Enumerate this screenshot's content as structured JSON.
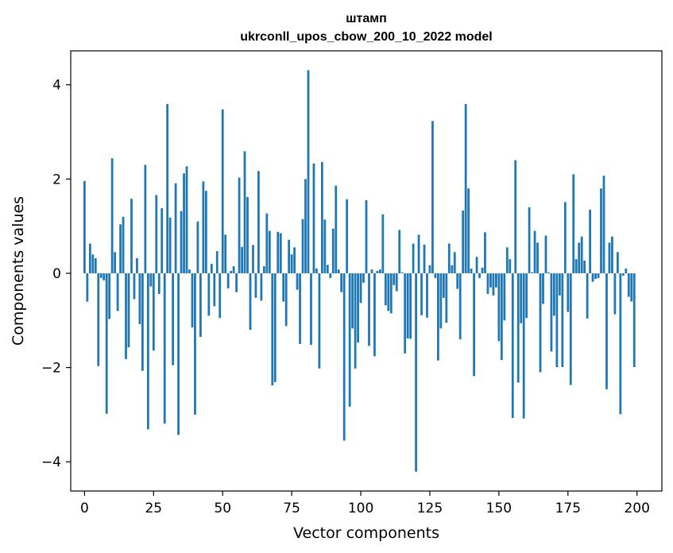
{
  "chart_data": {
    "type": "bar",
    "title": "штамп",
    "subtitle": "ukrconll_upos_cbow_200_10_2022 model",
    "xlabel": "Vector components",
    "ylabel": "Components values",
    "xlim": [
      -5,
      209
    ],
    "ylim": [
      -4.62,
      4.72
    ],
    "xticks": [
      0,
      25,
      50,
      75,
      100,
      125,
      150,
      175,
      200
    ],
    "yticks": [
      -4,
      -2,
      0,
      2,
      4
    ],
    "ytick_labels": [
      "−4",
      "−2",
      "0",
      "2",
      "4"
    ],
    "bar_color": "#1f77b4",
    "grid": false,
    "legend": "none",
    "x": [
      0,
      1,
      2,
      3,
      4,
      5,
      6,
      7,
      8,
      9,
      10,
      11,
      12,
      13,
      14,
      15,
      16,
      17,
      18,
      19,
      20,
      21,
      22,
      23,
      24,
      25,
      26,
      27,
      28,
      29,
      30,
      31,
      32,
      33,
      34,
      35,
      36,
      37,
      38,
      39,
      40,
      41,
      42,
      43,
      44,
      45,
      46,
      47,
      48,
      49,
      50,
      51,
      52,
      53,
      54,
      55,
      56,
      57,
      58,
      59,
      60,
      61,
      62,
      63,
      64,
      65,
      66,
      67,
      68,
      69,
      70,
      71,
      72,
      73,
      74,
      75,
      76,
      77,
      78,
      79,
      80,
      81,
      82,
      83,
      84,
      85,
      86,
      87,
      88,
      89,
      90,
      91,
      92,
      93,
      94,
      95,
      96,
      97,
      98,
      99,
      100,
      101,
      102,
      103,
      104,
      105,
      106,
      107,
      108,
      109,
      110,
      111,
      112,
      113,
      114,
      115,
      116,
      117,
      118,
      119,
      120,
      121,
      122,
      123,
      124,
      125,
      126,
      127,
      128,
      129,
      130,
      131,
      132,
      133,
      134,
      135,
      136,
      137,
      138,
      139,
      140,
      141,
      142,
      143,
      144,
      145,
      146,
      147,
      148,
      149,
      150,
      151,
      152,
      153,
      154,
      155,
      156,
      157,
      158,
      159,
      160,
      161,
      162,
      163,
      164,
      165,
      166,
      167,
      168,
      169,
      170,
      171,
      172,
      173,
      174,
      175,
      176,
      177,
      178,
      179,
      180,
      181,
      182,
      183,
      184,
      185,
      186,
      187,
      188,
      189,
      190,
      191,
      192,
      193,
      194,
      195,
      196,
      197,
      198,
      199
    ],
    "values": [
      1.96,
      -0.6,
      0.63,
      0.4,
      0.32,
      -1.97,
      -0.1,
      -0.15,
      -2.98,
      -0.97,
      2.44,
      0.45,
      -0.8,
      1.04,
      1.2,
      -1.82,
      -1.57,
      1.58,
      -0.55,
      0.32,
      -1.08,
      -2.07,
      2.3,
      -3.31,
      -0.28,
      -1.64,
      1.66,
      -0.44,
      1.38,
      -3.19,
      3.59,
      1.18,
      -1.95,
      1.91,
      -3.43,
      1.32,
      2.12,
      2.27,
      0.08,
      -1.15,
      -3.0,
      1.1,
      -1.35,
      1.95,
      1.75,
      -0.9,
      0.2,
      -0.7,
      0.47,
      -0.95,
      3.48,
      0.82,
      -0.32,
      0.05,
      0.15,
      -0.4,
      2.03,
      0.56,
      2.59,
      1.62,
      -1.2,
      0.6,
      -0.52,
      2.17,
      -0.58,
      0.15,
      1.27,
      0.9,
      -2.38,
      -2.31,
      0.88,
      0.85,
      -0.6,
      -1.12,
      0.71,
      0.4,
      0.55,
      -0.35,
      -1.5,
      1.15,
      2.0,
      4.31,
      -1.52,
      2.33,
      0.1,
      -2.02,
      2.36,
      1.14,
      0.18,
      -0.1,
      0.95,
      1.86,
      0.08,
      -0.4,
      -3.55,
      1.57,
      -2.83,
      -1.17,
      -2.02,
      -1.47,
      -0.63,
      -0.2,
      1.55,
      -1.54,
      0.08,
      -1.76,
      0.05,
      0.08,
      1.25,
      -0.68,
      -0.8,
      -0.85,
      -0.25,
      -0.38,
      0.92,
      0.02,
      -1.7,
      -1.38,
      -1.39,
      0.63,
      -4.21,
      0.82,
      -0.89,
      0.61,
      -0.94,
      0.17,
      3.23,
      -0.1,
      -1.85,
      -1.17,
      -0.52,
      -1.05,
      0.63,
      0.17,
      0.45,
      -0.33,
      -1.4,
      1.33,
      3.59,
      1.8,
      0.1,
      -2.18,
      0.35,
      -0.1,
      0.12,
      0.87,
      -0.44,
      -0.3,
      -0.47,
      -0.3,
      -1.44,
      -1.84,
      -1.0,
      0.55,
      0.3,
      -3.07,
      2.4,
      -2.32,
      -1.06,
      -3.08,
      -0.95,
      1.4,
      0.02,
      0.9,
      0.65,
      -2.1,
      -0.65,
      0.8,
      0.02,
      -1.66,
      -0.9,
      -1.99,
      -0.47,
      -1.99,
      1.51,
      -0.82,
      -2.37,
      2.1,
      0.3,
      0.65,
      0.78,
      0.27,
      -0.96,
      1.35,
      -0.18,
      -0.12,
      -0.1,
      1.8,
      2.07,
      -2.46,
      0.65,
      0.78,
      -0.87,
      0.45,
      -2.99,
      -0.05,
      0.1,
      -0.5,
      -0.6,
      -1.99
    ]
  }
}
